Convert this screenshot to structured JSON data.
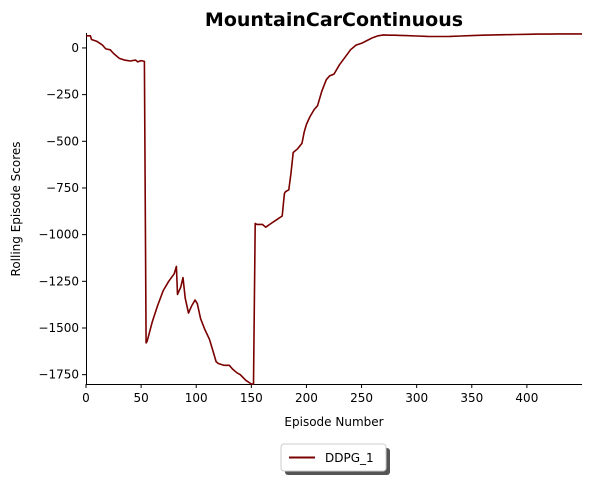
{
  "chart_data": {
    "type": "line",
    "title": "MountainCarContinuous",
    "xlabel": "Episode Number",
    "ylabel": "Rolling Episode Scores",
    "xlim": [
      0,
      450
    ],
    "ylim": [
      -1800,
      80
    ],
    "xticks": [
      0,
      50,
      100,
      150,
      200,
      250,
      300,
      350,
      400
    ],
    "yticks": [
      0,
      -250,
      -500,
      -750,
      -1000,
      -1250,
      -1500,
      -1750
    ],
    "grid": false,
    "legend_position": "bottom-center",
    "colors": {
      "series": "#7a0000"
    },
    "series": [
      {
        "name": "DDPG_1",
        "x": [
          0,
          4,
          5,
          10,
          15,
          18,
          22,
          25,
          30,
          35,
          40,
          45,
          47,
          50,
          53,
          54.5,
          55.5,
          60,
          65,
          70,
          75,
          80,
          82,
          83,
          86,
          88,
          90,
          93,
          96,
          99,
          101,
          104,
          108,
          112,
          115,
          118,
          120,
          125,
          130,
          133,
          137,
          140,
          145,
          150,
          152,
          153.5,
          155,
          160,
          163,
          168,
          173,
          178,
          180,
          181,
          184,
          186,
          188,
          192,
          196,
          198,
          200,
          203,
          207,
          210,
          214,
          218,
          221,
          225,
          230,
          235,
          240,
          245,
          250,
          255,
          260,
          265,
          270,
          275,
          280,
          285,
          290,
          300,
          310,
          320,
          330,
          340,
          350,
          360,
          370,
          380,
          390,
          400,
          410,
          420,
          430,
          440,
          450
        ],
        "y": [
          65,
          65,
          45,
          35,
          15,
          -5,
          -10,
          -30,
          -55,
          -65,
          -70,
          -65,
          -75,
          -68,
          -72,
          -1580,
          -1570,
          -1470,
          -1380,
          -1300,
          -1250,
          -1210,
          -1170,
          -1320,
          -1280,
          -1230,
          -1340,
          -1420,
          -1380,
          -1350,
          -1370,
          -1450,
          -1510,
          -1560,
          -1620,
          -1680,
          -1690,
          -1700,
          -1700,
          -1720,
          -1740,
          -1750,
          -1780,
          -1800,
          -1800,
          -940,
          -945,
          -945,
          -960,
          -940,
          -920,
          -900,
          -780,
          -770,
          -760,
          -670,
          -560,
          -540,
          -510,
          -450,
          -410,
          -370,
          -330,
          -310,
          -230,
          -170,
          -150,
          -140,
          -90,
          -50,
          -10,
          15,
          25,
          40,
          55,
          65,
          70,
          68,
          68,
          67,
          66,
          64,
          62,
          61,
          62,
          64,
          66,
          68,
          70,
          71,
          72,
          73,
          74,
          74,
          75,
          75,
          75
        ]
      }
    ]
  }
}
